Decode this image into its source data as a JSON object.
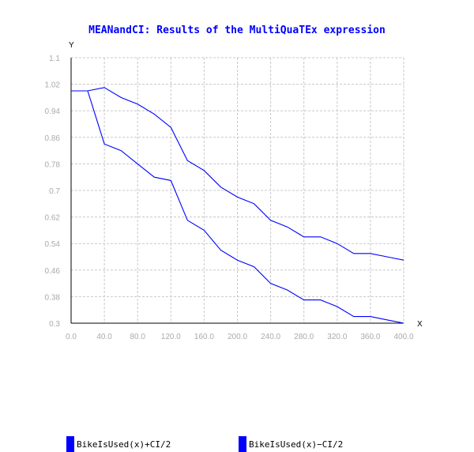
{
  "chart_data": {
    "type": "line",
    "title": "MEANandCI: Results of the MultiQuaTEx expression",
    "xlabel": "X",
    "ylabel": "Y",
    "xlim": [
      0,
      400
    ],
    "ylim": [
      0.3,
      1.1
    ],
    "x_ticks": [
      "0.0",
      "40.0",
      "80.0",
      "120.0",
      "160.0",
      "200.0",
      "240.0",
      "280.0",
      "320.0",
      "360.0",
      "400.0"
    ],
    "y_ticks": [
      "0.3",
      "0.38",
      "0.46",
      "0.54",
      "0.62",
      "0.7",
      "0.78",
      "0.86",
      "0.94",
      "1.02",
      "1.1"
    ],
    "x_tick_values": [
      0,
      40,
      80,
      120,
      160,
      200,
      240,
      280,
      320,
      360,
      400
    ],
    "y_tick_values": [
      0.3,
      0.38,
      0.46,
      0.54,
      0.62,
      0.7,
      0.78,
      0.86,
      0.94,
      1.02,
      1.1
    ],
    "grid": true,
    "legend_position": "bottom",
    "x": [
      0,
      20,
      40,
      60,
      80,
      100,
      120,
      140,
      160,
      180,
      200,
      220,
      240,
      260,
      280,
      300,
      320,
      340,
      360,
      380,
      400
    ],
    "series": [
      {
        "name": "BikeIsUsed(x)+CI/2",
        "color": "#0000ff",
        "values": [
          1.0,
          1.0,
          1.01,
          0.98,
          0.96,
          0.93,
          0.89,
          0.79,
          0.76,
          0.71,
          0.68,
          0.66,
          0.61,
          0.59,
          0.56,
          0.56,
          0.54,
          0.51,
          0.51,
          0.5,
          0.49
        ]
      },
      {
        "name": "BikeIsUsed(x)−CI/2",
        "color": "#0000ff",
        "values": [
          1.0,
          1.0,
          0.84,
          0.82,
          0.78,
          0.74,
          0.73,
          0.61,
          0.58,
          0.52,
          0.49,
          0.47,
          0.42,
          0.4,
          0.37,
          0.37,
          0.35,
          0.32,
          0.32,
          0.31,
          0.3
        ]
      }
    ]
  }
}
